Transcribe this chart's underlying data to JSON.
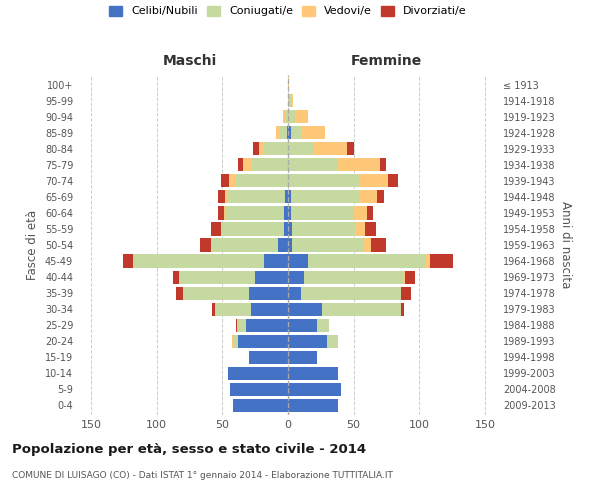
{
  "age_groups": [
    "0-4",
    "5-9",
    "10-14",
    "15-19",
    "20-24",
    "25-29",
    "30-34",
    "35-39",
    "40-44",
    "45-49",
    "50-54",
    "55-59",
    "60-64",
    "65-69",
    "70-74",
    "75-79",
    "80-84",
    "85-89",
    "90-94",
    "95-99",
    "100+"
  ],
  "birth_years": [
    "2009-2013",
    "2004-2008",
    "1999-2003",
    "1994-1998",
    "1989-1993",
    "1984-1988",
    "1979-1983",
    "1974-1978",
    "1969-1973",
    "1964-1968",
    "1959-1963",
    "1954-1958",
    "1949-1953",
    "1944-1948",
    "1939-1943",
    "1934-1938",
    "1929-1933",
    "1924-1928",
    "1919-1923",
    "1914-1918",
    "≤ 1913"
  ],
  "males_celibe": [
    42,
    44,
    46,
    30,
    38,
    32,
    28,
    30,
    25,
    18,
    8,
    3,
    3,
    2,
    0,
    0,
    0,
    1,
    0,
    0,
    0
  ],
  "males_coniugato": [
    0,
    0,
    0,
    0,
    4,
    7,
    28,
    50,
    58,
    100,
    50,
    48,
    45,
    44,
    40,
    28,
    18,
    5,
    2,
    0,
    0
  ],
  "males_vedovo": [
    0,
    0,
    0,
    0,
    1,
    0,
    0,
    0,
    0,
    0,
    1,
    0,
    1,
    2,
    5,
    6,
    4,
    3,
    2,
    0,
    0
  ],
  "males_divorziato": [
    0,
    0,
    0,
    0,
    0,
    1,
    2,
    5,
    5,
    8,
    8,
    8,
    4,
    5,
    6,
    4,
    5,
    0,
    0,
    0,
    0
  ],
  "females_celibe": [
    38,
    40,
    38,
    22,
    30,
    22,
    26,
    10,
    12,
    15,
    3,
    3,
    2,
    2,
    0,
    0,
    0,
    2,
    0,
    0,
    0
  ],
  "females_coniugato": [
    0,
    0,
    0,
    0,
    8,
    9,
    60,
    76,
    76,
    90,
    55,
    48,
    48,
    52,
    54,
    38,
    20,
    8,
    5,
    2,
    0
  ],
  "females_vedovo": [
    0,
    0,
    0,
    0,
    0,
    0,
    0,
    0,
    1,
    3,
    5,
    8,
    10,
    14,
    22,
    32,
    25,
    18,
    10,
    2,
    1
  ],
  "females_divorziato": [
    0,
    0,
    0,
    0,
    0,
    0,
    2,
    8,
    8,
    18,
    12,
    8,
    5,
    5,
    8,
    5,
    5,
    0,
    0,
    0,
    0
  ],
  "colors": {
    "celibe": "#4472c4",
    "coniugato": "#c5d9a0",
    "vedovo": "#ffc878",
    "divorziato": "#c0392b"
  },
  "xlim": 160,
  "title": "Popolazione per età, sesso e stato civile - 2014",
  "subtitle": "COMUNE DI LUISAGO (CO) - Dati ISTAT 1° gennaio 2014 - Elaborazione TUTTITALIA.IT",
  "ylabel_left": "Fasce di età",
  "ylabel_right": "Anni di nascita",
  "label_maschi": "Maschi",
  "label_femmine": "Femmine",
  "legend_labels": [
    "Celibi/Nubili",
    "Coniugati/e",
    "Vedovi/e",
    "Divorziati/e"
  ],
  "background_color": "#ffffff",
  "grid_color": "#cccccc"
}
